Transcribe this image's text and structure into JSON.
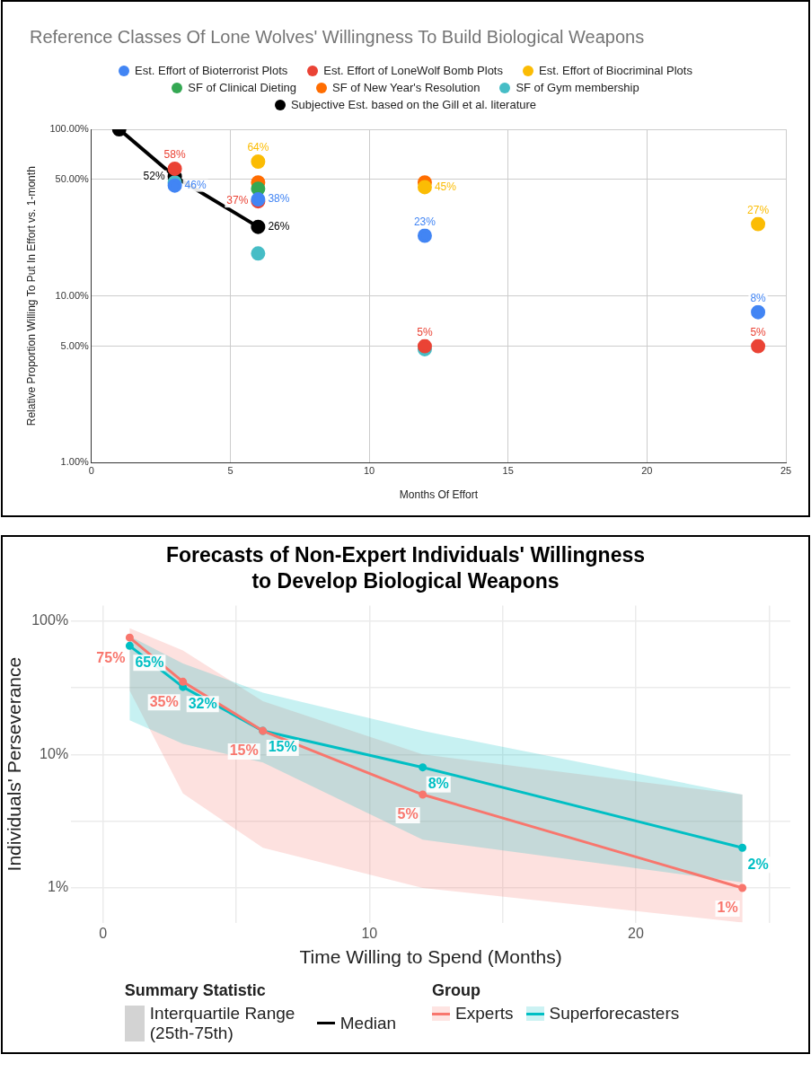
{
  "chart_data": [
    {
      "type": "scatter",
      "title": "Reference Classes Of Lone Wolves' Willingness To Build Biological Weapons",
      "xlabel": "Months Of Effort",
      "ylabel": "Relative Proportion Willing To Put In Effort vs. 1-month",
      "log": "y",
      "grid": true,
      "legend": "top",
      "marker": "circle",
      "xlim": [
        0,
        25
      ],
      "xticks": [
        0,
        5,
        10,
        15,
        20,
        25
      ],
      "ylim": [
        1,
        100
      ],
      "yticks": [
        {
          "value": 1,
          "label": "1.00%"
        },
        {
          "value": 5,
          "label": "5.00%"
        },
        {
          "value": 10,
          "label": "10.00%"
        },
        {
          "value": 50,
          "label": "50.00%"
        },
        {
          "value": 100,
          "label": "100.00%"
        }
      ],
      "series": [
        {
          "name": "Est. Effort of Bioterrorist Plots",
          "color": "#4285f4",
          "x": [
            3,
            6,
            12,
            24
          ],
          "values": [
            46,
            38,
            23,
            8
          ],
          "value_labels": [
            "46%",
            "38%",
            "23%",
            "8%"
          ]
        },
        {
          "name": "Est. Effort of LoneWolf Bomb Plots",
          "color": "#ea4335",
          "x": [
            3,
            6,
            12,
            24
          ],
          "values": [
            58,
            37,
            5,
            5
          ],
          "value_labels": [
            "58%",
            "37%",
            "5%",
            "5%"
          ]
        },
        {
          "name": "Est. Effort of Biocriminal Plots",
          "color": "#fbbc04",
          "x": [
            6,
            12,
            24
          ],
          "values": [
            64,
            45,
            27
          ],
          "value_labels": [
            "64%",
            "45%",
            "27%"
          ]
        },
        {
          "name": "SF of Clinical Dieting",
          "color": "#34a853",
          "x": [
            6
          ],
          "values": [
            44
          ]
        },
        {
          "name": "SF of New Year's Resolution",
          "color": "#ff6d01",
          "x": [
            6,
            12
          ],
          "values": [
            48,
            48
          ]
        },
        {
          "name": "SF of Gym membership",
          "color": "#46bdc6",
          "x": [
            3,
            6,
            12
          ],
          "values": [
            48,
            18,
            4.8
          ]
        },
        {
          "name": "Subjective Est. based on the Gill et al. literature",
          "color": "#000000",
          "type": "line",
          "x": [
            1,
            3,
            6
          ],
          "values": [
            100,
            52,
            26
          ],
          "value_labels": [
            null,
            "52%",
            "26%"
          ]
        }
      ]
    },
    {
      "type": "line",
      "title": "Forecasts of Non-Expert Individuals' Willingness\nto Develop Biological Weapons",
      "xlabel": "Time Willing to Spend (Months)",
      "ylabel": "Individuals' Perseverance",
      "log": "y",
      "grid": true,
      "legend": "bottom",
      "legend_title": "Group",
      "marker": "circle",
      "xlim": [
        -1.2,
        25.8
      ],
      "xticks": [
        0,
        {
          "value": 5,
          "label": null
        },
        10,
        {
          "value": 15,
          "label": null
        },
        20,
        {
          "value": 25,
          "label": null
        }
      ],
      "ylim": [
        0.55,
        130
      ],
      "yticks": [
        {
          "value": 1,
          "label": "1%"
        },
        {
          "value": 3.16,
          "label": null
        },
        {
          "value": 10,
          "label": "10%"
        },
        {
          "value": 31.6,
          "label": null
        },
        {
          "value": 100,
          "label": "100%"
        }
      ],
      "annotations": [
        "Summary Statistic",
        "Interquartile Range (25th-75th)",
        "Median"
      ],
      "series": [
        {
          "name": "Experts",
          "color": "#f8766d",
          "x": [
            1,
            3,
            6,
            12,
            24
          ],
          "values": [
            75,
            35,
            15,
            5,
            1
          ],
          "value_labels": [
            "75%",
            "35%",
            "15%",
            "5%",
            "1%"
          ],
          "lower": [
            30,
            5.1,
            2,
            1,
            0.55
          ],
          "upper": [
            88,
            60,
            25,
            10,
            5
          ]
        },
        {
          "name": "Superforecasters",
          "color": "#00bfc4",
          "x": [
            1,
            3,
            6,
            12,
            24
          ],
          "values": [
            65,
            32,
            15,
            8,
            2
          ],
          "value_labels": [
            "65%",
            "32%",
            "15%",
            "8%",
            "2%"
          ],
          "lower": [
            18,
            12,
            8.7,
            2.3,
            1.1
          ],
          "upper": [
            77,
            48,
            29,
            15,
            5
          ]
        }
      ]
    }
  ]
}
